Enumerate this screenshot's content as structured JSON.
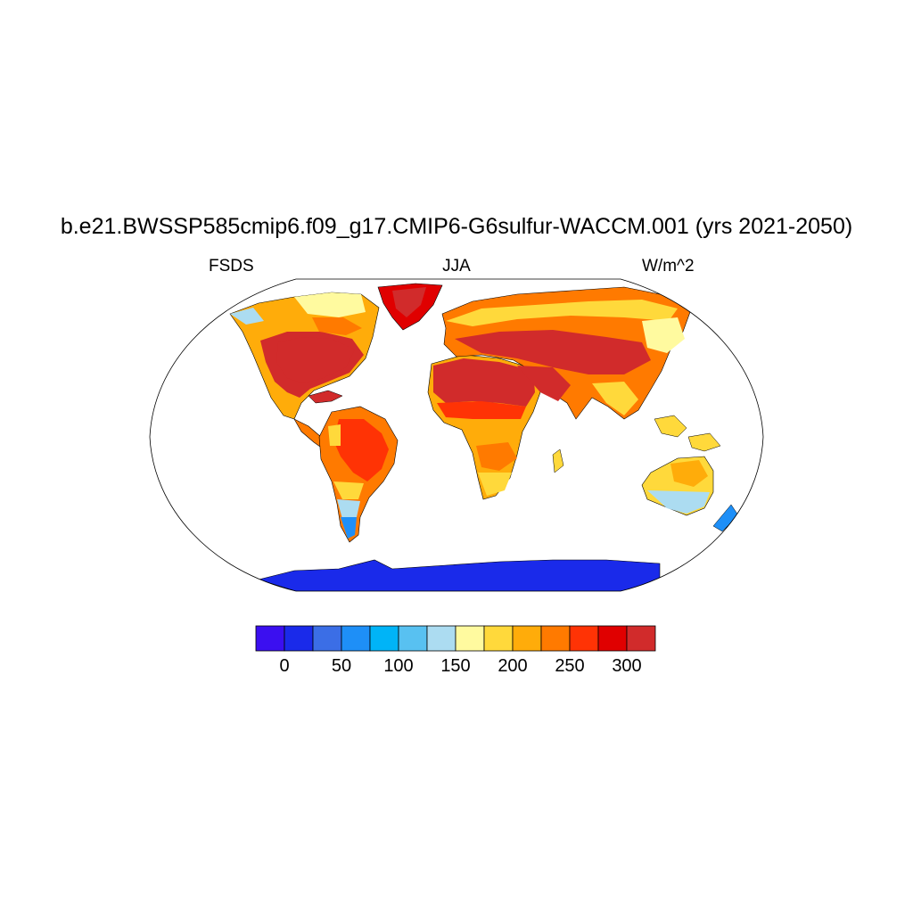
{
  "title": "b.e21.BWSSP585cmip6.f09_g17.CMIP6-G6sulfur-WACCM.001 (yrs 2021-2050)",
  "left_label": "FSDS",
  "center_label": "JJA",
  "right_label": "W/m^2",
  "colorbar": {
    "colors": [
      "#3b0ff0",
      "#1a2aea",
      "#3b6ee6",
      "#1e8ff7",
      "#00b4f7",
      "#58c1f1",
      "#acdcf1",
      "#fffa9f",
      "#ffd93b",
      "#ffac0a",
      "#ff7a00",
      "#ff3305",
      "#e00000",
      "#d12b2b"
    ],
    "labels": [
      "0",
      "50",
      "100",
      "150",
      "200",
      "250",
      "300"
    ]
  },
  "map": {
    "ocean_color": "#ffffff",
    "land_regions": [
      {
        "name": "north-america",
        "color": "#d72b2b"
      },
      {
        "name": "greenland",
        "color": "#e00000"
      },
      {
        "name": "south-america",
        "color": "#ff7a00"
      },
      {
        "name": "africa",
        "color": "#ffac0a"
      },
      {
        "name": "eurasia",
        "color": "#ff7a00"
      },
      {
        "name": "australia",
        "color": "#ffd93b"
      },
      {
        "name": "antarctica",
        "color": "#1a2aea"
      }
    ]
  }
}
